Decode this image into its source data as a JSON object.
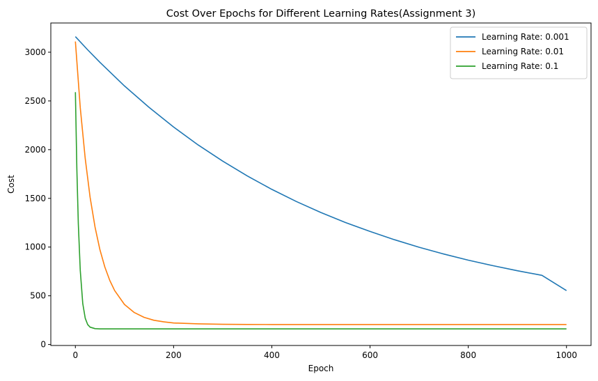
{
  "chart_data": {
    "type": "line",
    "title": "Cost Over Epochs for Different Learning Rates(Assignment 3)",
    "xlabel": "Epoch",
    "ylabel": "Cost",
    "xlim": [
      -50,
      1050
    ],
    "ylim": [
      -10,
      3300
    ],
    "xticks": [
      0,
      200,
      400,
      600,
      800,
      1000
    ],
    "yticks": [
      0,
      500,
      1000,
      1500,
      2000,
      2500,
      3000
    ],
    "grid": false,
    "legend_position": "top-right",
    "series": [
      {
        "name": "Learning Rate: 0.001",
        "color": "#1f77b4",
        "x": [
          0,
          25,
          50,
          100,
          150,
          200,
          250,
          300,
          350,
          400,
          450,
          500,
          550,
          600,
          650,
          700,
          750,
          800,
          850,
          900,
          950,
          1000
        ],
        "y": [
          3160,
          3025,
          2897,
          2654,
          2434,
          2232,
          2048,
          1882,
          1730,
          1592,
          1468,
          1355,
          1252,
          1160,
          1075,
          998,
          929,
          866,
          809,
          757,
          710,
          553
        ]
      },
      {
        "name": "Learning Rate: 0.01",
        "color": "#ff7f0e",
        "x": [
          0,
          10,
          20,
          30,
          40,
          50,
          60,
          70,
          80,
          100,
          120,
          140,
          160,
          180,
          200,
          250,
          300,
          350,
          400,
          500,
          600,
          700,
          800,
          900,
          1000
        ],
        "y": [
          3110,
          2430,
          1910,
          1512,
          1206,
          974,
          795,
          658,
          553,
          411,
          328,
          279,
          249,
          232,
          221,
          212,
          207,
          206,
          205,
          205,
          205,
          205,
          205,
          205,
          205
        ]
      },
      {
        "name": "Learning Rate: 0.1",
        "color": "#2ca02c",
        "x": [
          0,
          3,
          6,
          10,
          15,
          20,
          25,
          30,
          40,
          50,
          100,
          200,
          400,
          600,
          800,
          1000
        ],
        "y": [
          2590,
          1800,
          1240,
          760,
          420,
          270,
          205,
          178,
          163,
          160,
          160,
          160,
          160,
          160,
          160,
          160
        ]
      }
    ]
  }
}
